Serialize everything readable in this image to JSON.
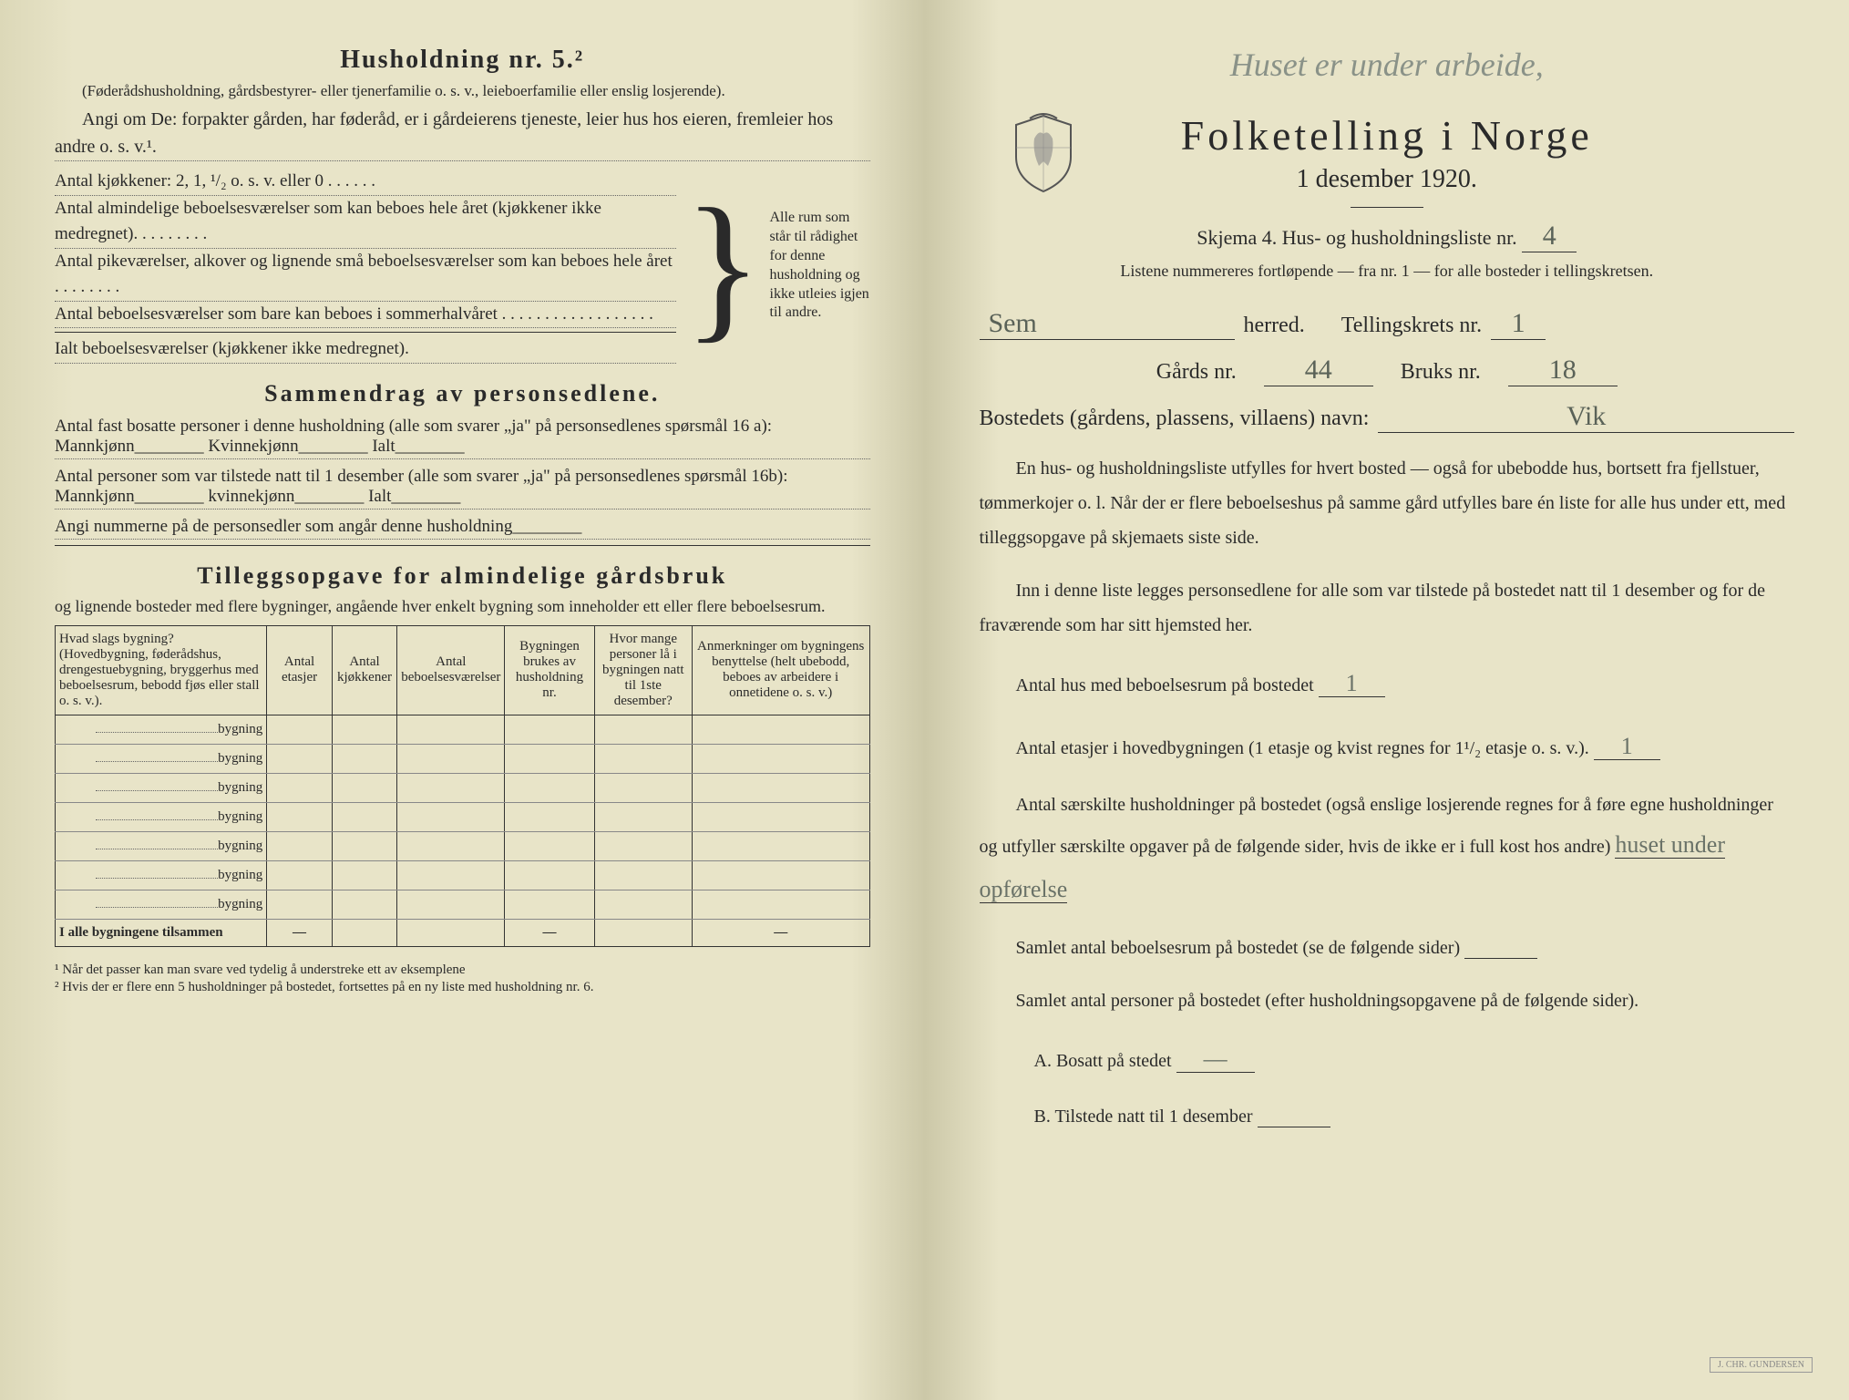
{
  "left": {
    "household_heading": "Husholdning nr. 5.²",
    "household_sub": "(Føderådshusholdning, gårdsbestyrer- eller tjenerfamilie o. s. v., leieboerfamilie eller enslig losjerende).",
    "angi_line": "Angi om De:  forpakter gården, har føderåd, er i gårdeierens tjeneste, leier hus hos eieren, fremleier hos andre o. s. v.¹.",
    "brace_rows": [
      "Antal kjøkkener: 2, 1, ¹/₂ o. s. v. eller 0 . . . . . .",
      "Antal almindelige beboelsesværelser som kan beboes hele året (kjøkkener ikke medregnet). . . . . . . . .",
      "Antal pikeværelser, alkover og lignende små beboelsesværelser som kan beboes hele året . . . . . . . .",
      "Antal beboelsesværelser som bare kan beboes i sommerhalvåret . . . . . . . . . . . . . . . . . .",
      "Ialt beboelsesværelser (kjøkkener ikke medregnet)."
    ],
    "brace_note": "Alle rum som står til rådighet for denne husholdning og ikke utleies igjen til andre.",
    "summary_title": "Sammendrag av personsedlene.",
    "summary_lines": [
      "Antal fast bosatte personer i denne husholdning (alle som svarer „ja\" på personsedlenes spørsmål 16 a): Mannkjønn________ Kvinnekjønn________ Ialt________",
      "Antal personer som var tilstede natt til 1 desember (alle som svarer „ja\" på personsedlenes spørsmål 16b): Mannkjønn________ kvinnekjønn________ Ialt________",
      "Angi nummerne på de personsedler som angår denne husholdning________"
    ],
    "farm_title": "Tilleggsopgave for almindelige gårdsbruk",
    "farm_sub": "og lignende bosteder med flere bygninger, angående hver enkelt bygning som inneholder ett eller flere beboelsesrum.",
    "table_headers": [
      "Hvad slags bygning?\n(Hovedbygning, føderådshus, drengestuebygning, bryggerhus med beboelsesrum, bebodd fjøs eller stall o. s. v.).",
      "Antal etasjer",
      "Antal kjøkkener",
      "Antal beboelsesværelser",
      "Bygningen brukes av husholdning nr.",
      "Hvor mange personer lå i bygningen natt til 1ste desember?",
      "Anmerkninger om bygningens benyttelse (helt ubebodd, beboes av arbeidere i onnetidene o. s. v.)"
    ],
    "bygning_label": "bygning",
    "bygning_count": 7,
    "total_label": "I alle bygningene tilsammen",
    "footnote1": "¹  Når det passer kan man svare ved tydelig å understreke ett av eksemplene",
    "footnote2": "²  Hvis der er flere enn 5 husholdninger på bostedet, fortsettes på en ny liste med husholdning nr. 6."
  },
  "right": {
    "handwriting_top": "Huset er under arbeide,",
    "main_title": "Folketelling i Norge",
    "sub_title": "1 desember 1920.",
    "schema": "Skjema 4.   Hus- og husholdningsliste nr.",
    "schema_value": "4",
    "listene": "Listene nummereres fortløpende — fra nr. 1 — for alle bosteder i tellingskretsen.",
    "herred_value": "Sem",
    "herred_label": "herred.",
    "tellingskrets_label": "Tellingskrets nr.",
    "tellingskrets_value": "1",
    "gards_label": "Gårds nr.",
    "gards_value": "44",
    "bruks_label": "Bruks nr.",
    "bruks_value": "18",
    "bosted_label": "Bostedets (gårdens, plassens, villaens) navn:",
    "bosted_value": "Vik",
    "body_p1": "En hus- og husholdningsliste utfylles for hvert bosted — også for ubebodde hus, bortsett fra fjellstuer, tømmerkojer o. l. Når der er flere beboelseshus på samme gård utfylles bare én liste for alle hus under ett, med tilleggsopgave på skjemaets siste side.",
    "body_p2": "Inn i denne liste legges personsedlene for alle som var tilstede på bostedet natt til 1 desember og for de fraværende som har sitt hjemsted her.",
    "q1": "Antal hus med beboelsesrum på bostedet",
    "q1_value": "1",
    "q2a": "Antal etasjer i hovedbygningen (1 etasje og kvist regnes for 1¹/₂ etasje o. s. v.).",
    "q2_value": "1",
    "q3": "Antal særskilte husholdninger på bostedet (også enslige losjerende regnes for å føre egne husholdninger og utfyller særskilte opgaver på de følgende sider, hvis de ikke er i full kost hos andre)",
    "q3_hw": "huset under opførelse",
    "q4": "Samlet antal beboelsesrum på bostedet (se de følgende sider)",
    "q5": "Samlet antal personer på bostedet (efter husholdningsopgavene på de følgende sider).",
    "qA": "A.  Bosatt på stedet",
    "qA_value": "—",
    "qB": "B.  Tilstede natt til 1 desember",
    "imprint": "J. CHR. GUNDERSEN"
  }
}
